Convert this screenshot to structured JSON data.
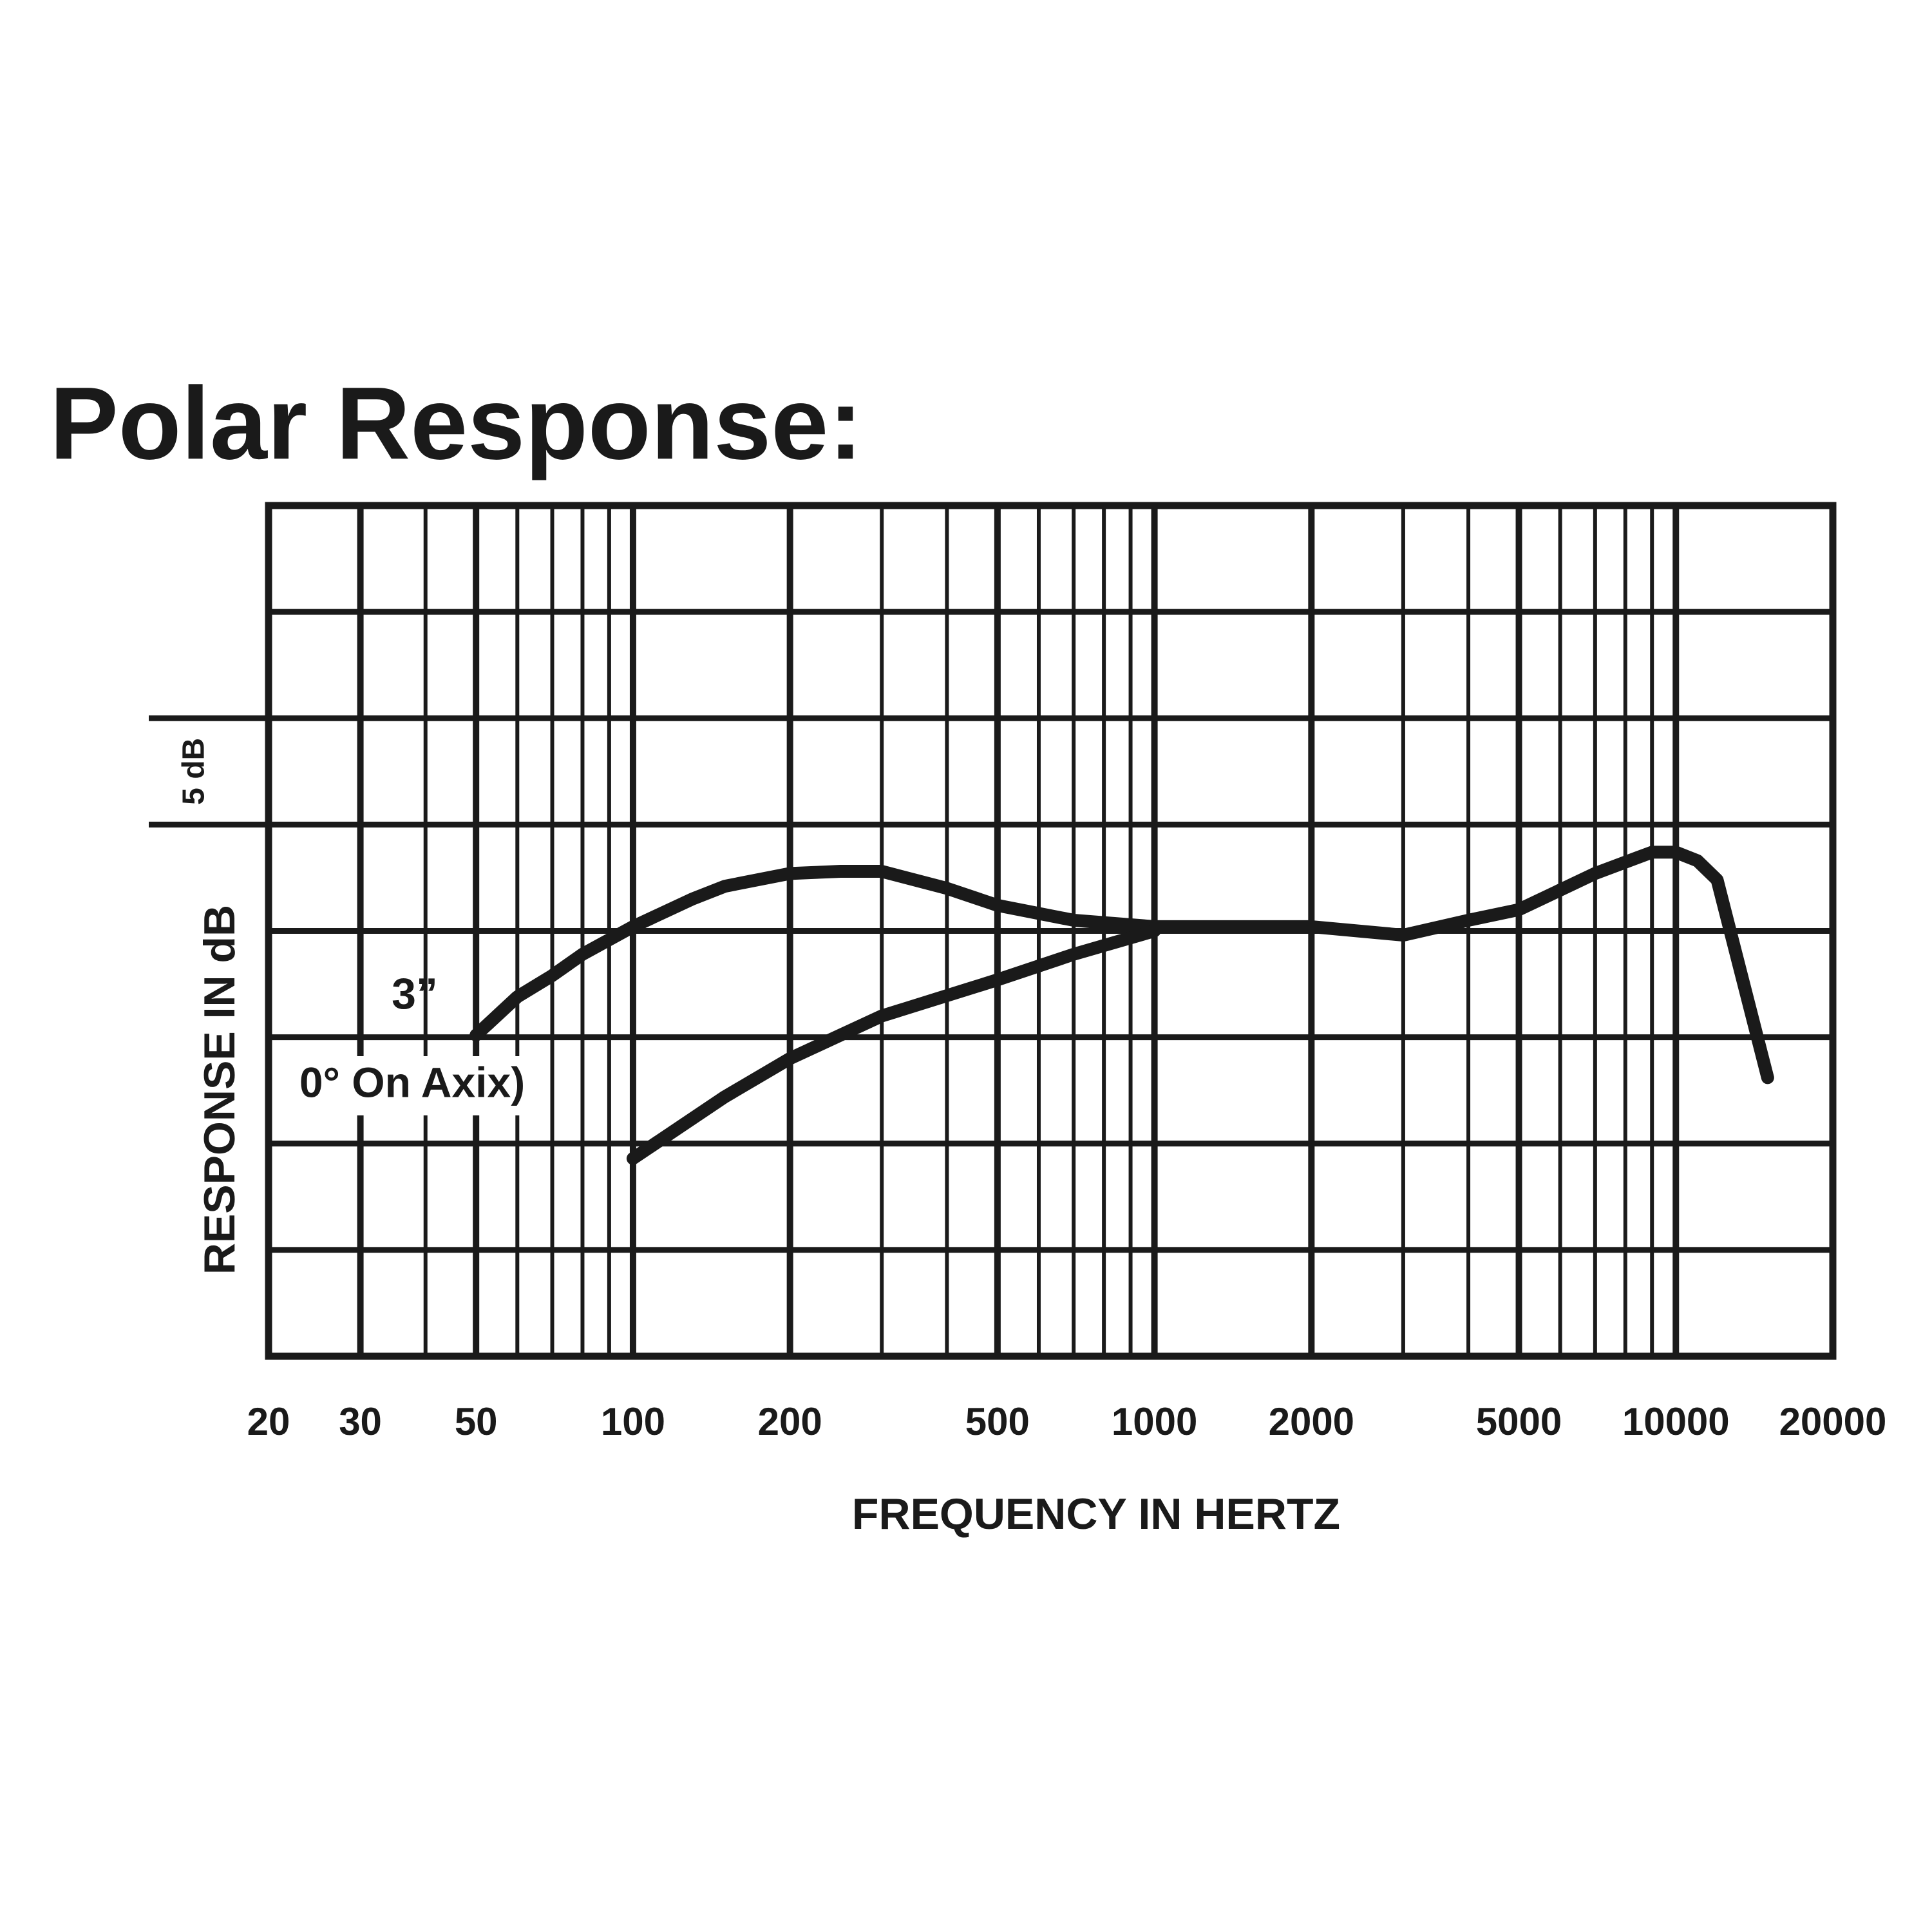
{
  "chart_data": {
    "type": "line",
    "title": "Polar Response:",
    "x_label": "FREQUENCY IN HERTZ",
    "y_label": "RESPONSE IN dB",
    "annotation": "5 dB",
    "annotation_range": [
      5,
      10
    ],
    "xscale": "log",
    "xlim": [
      20,
      20000
    ],
    "xticks": [
      20,
      30,
      50,
      100,
      200,
      500,
      1000,
      2000,
      5000,
      10000,
      20000
    ],
    "xminor": [
      40,
      60,
      70,
      80,
      90,
      300,
      400,
      600,
      700,
      800,
      900,
      3000,
      4000,
      6000,
      7000,
      8000,
      9000
    ],
    "ylim": [
      -20,
      20
    ],
    "yticks": [
      -15,
      -10,
      -5,
      0,
      5,
      10,
      15
    ],
    "grid": true,
    "series": [
      {
        "name": "3”",
        "color": "#1a1a1a",
        "x": [
          50,
          60,
          70,
          80,
          100,
          130,
          150,
          200,
          250,
          300,
          400,
          500,
          700,
          1000,
          2000,
          3000,
          4000,
          5000,
          7000,
          9000,
          10000,
          11000,
          12000,
          15000
        ],
        "values": [
          -4.9,
          -3.1,
          -2.1,
          -1.1,
          0.2,
          1.5,
          2.1,
          2.7,
          2.8,
          2.8,
          2.0,
          1.2,
          0.5,
          0.2,
          0.2,
          -0.2,
          0.5,
          1.0,
          2.7,
          3.7,
          3.7,
          3.3,
          2.4,
          -6.9
        ]
      },
      {
        "name": "0° On Axix)",
        "color": "#1a1a1a",
        "x": [
          100,
          150,
          200,
          300,
          500,
          700,
          1000
        ],
        "values": [
          -10.7,
          -7.8,
          -6.0,
          -4.0,
          -2.3,
          -1.1,
          0
        ]
      }
    ]
  }
}
